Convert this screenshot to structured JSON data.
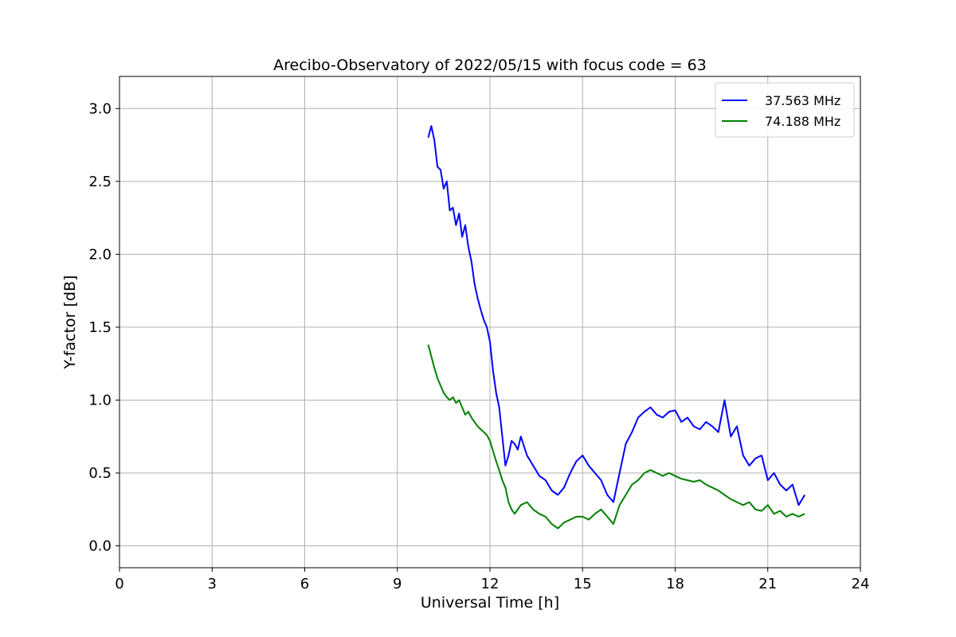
{
  "chart_data": {
    "type": "line",
    "title": "Arecibo-Observatory of 2022/05/15 with focus code = 63",
    "xlabel": "Universal Time [h]",
    "ylabel": "Y-factor [dB]",
    "xlim": [
      0,
      24
    ],
    "ylim": [
      -0.15,
      3.22
    ],
    "xticks": [
      0,
      3,
      6,
      9,
      12,
      15,
      18,
      21,
      24
    ],
    "yticks": [
      0.0,
      0.5,
      1.0,
      1.5,
      2.0,
      2.5,
      3.0
    ],
    "xtick_labels": [
      "0",
      "3",
      "6",
      "9",
      "12",
      "15",
      "18",
      "21",
      "24"
    ],
    "ytick_labels": [
      "0.0",
      "0.5",
      "1.0",
      "1.5",
      "2.0",
      "2.5",
      "3.0"
    ],
    "grid": true,
    "legend_position": "top-right",
    "series": [
      {
        "name": "37.563 MHz",
        "color": "#0000ff",
        "x": [
          10.0,
          10.1,
          10.2,
          10.3,
          10.4,
          10.5,
          10.6,
          10.7,
          10.8,
          10.9,
          11.0,
          11.1,
          11.2,
          11.3,
          11.4,
          11.5,
          11.6,
          11.7,
          11.8,
          11.9,
          12.0,
          12.1,
          12.2,
          12.3,
          12.4,
          12.5,
          12.6,
          12.7,
          12.8,
          12.9,
          13.0,
          13.2,
          13.4,
          13.6,
          13.8,
          14.0,
          14.2,
          14.4,
          14.6,
          14.8,
          15.0,
          15.2,
          15.4,
          15.6,
          15.8,
          16.0,
          16.2,
          16.4,
          16.6,
          16.8,
          17.0,
          17.2,
          17.4,
          17.6,
          17.8,
          18.0,
          18.2,
          18.4,
          18.6,
          18.8,
          19.0,
          19.2,
          19.4,
          19.6,
          19.8,
          20.0,
          20.2,
          20.4,
          20.6,
          20.8,
          21.0,
          21.2,
          21.4,
          21.6,
          21.8,
          22.0,
          22.2
        ],
        "values": [
          2.8,
          2.88,
          2.78,
          2.6,
          2.58,
          2.45,
          2.5,
          2.3,
          2.32,
          2.2,
          2.28,
          2.12,
          2.2,
          2.05,
          1.95,
          1.8,
          1.7,
          1.62,
          1.55,
          1.5,
          1.4,
          1.2,
          1.05,
          0.95,
          0.75,
          0.55,
          0.62,
          0.72,
          0.7,
          0.66,
          0.75,
          0.62,
          0.55,
          0.48,
          0.45,
          0.38,
          0.35,
          0.4,
          0.5,
          0.58,
          0.62,
          0.55,
          0.5,
          0.45,
          0.35,
          0.3,
          0.5,
          0.7,
          0.78,
          0.88,
          0.92,
          0.95,
          0.9,
          0.88,
          0.92,
          0.93,
          0.85,
          0.88,
          0.82,
          0.8,
          0.85,
          0.82,
          0.78,
          1.0,
          0.75,
          0.82,
          0.62,
          0.55,
          0.6,
          0.62,
          0.45,
          0.5,
          0.42,
          0.38,
          0.42,
          0.28,
          0.35
        ]
      },
      {
        "name": "74.188 MHz",
        "color": "#008000",
        "x": [
          10.0,
          10.1,
          10.2,
          10.3,
          10.4,
          10.5,
          10.6,
          10.7,
          10.8,
          10.9,
          11.0,
          11.1,
          11.2,
          11.3,
          11.4,
          11.5,
          11.6,
          11.7,
          11.8,
          11.9,
          12.0,
          12.1,
          12.2,
          12.3,
          12.4,
          12.5,
          12.6,
          12.7,
          12.8,
          12.9,
          13.0,
          13.2,
          13.4,
          13.6,
          13.8,
          14.0,
          14.2,
          14.4,
          14.6,
          14.8,
          15.0,
          15.2,
          15.4,
          15.6,
          15.8,
          16.0,
          16.2,
          16.4,
          16.6,
          16.8,
          17.0,
          17.2,
          17.4,
          17.6,
          17.8,
          18.0,
          18.2,
          18.4,
          18.6,
          18.8,
          19.0,
          19.2,
          19.4,
          19.6,
          19.8,
          20.0,
          20.2,
          20.4,
          20.6,
          20.8,
          21.0,
          21.2,
          21.4,
          21.6,
          21.8,
          22.0,
          22.2
        ],
        "values": [
          1.38,
          1.3,
          1.22,
          1.15,
          1.1,
          1.05,
          1.02,
          1.0,
          1.02,
          0.98,
          1.0,
          0.95,
          0.9,
          0.92,
          0.88,
          0.85,
          0.82,
          0.8,
          0.78,
          0.76,
          0.72,
          0.65,
          0.58,
          0.52,
          0.45,
          0.4,
          0.3,
          0.25,
          0.22,
          0.25,
          0.28,
          0.3,
          0.25,
          0.22,
          0.2,
          0.15,
          0.12,
          0.16,
          0.18,
          0.2,
          0.2,
          0.18,
          0.22,
          0.25,
          0.2,
          0.15,
          0.28,
          0.35,
          0.42,
          0.45,
          0.5,
          0.52,
          0.5,
          0.48,
          0.5,
          0.48,
          0.46,
          0.45,
          0.44,
          0.45,
          0.42,
          0.4,
          0.38,
          0.35,
          0.32,
          0.3,
          0.28,
          0.3,
          0.25,
          0.24,
          0.28,
          0.22,
          0.24,
          0.2,
          0.22,
          0.2,
          0.22
        ]
      }
    ]
  }
}
